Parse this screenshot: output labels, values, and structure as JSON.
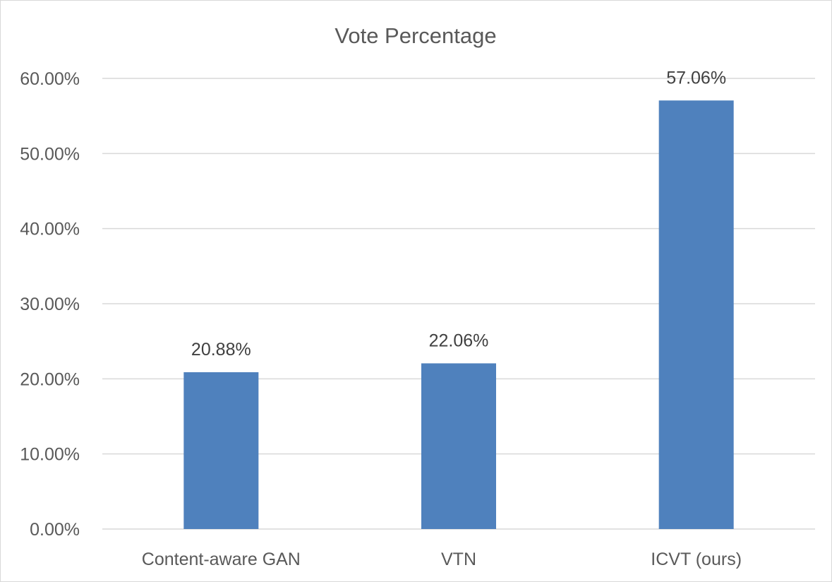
{
  "chart_data": {
    "type": "bar",
    "title": "Vote Percentage",
    "categories": [
      "Content-aware GAN",
      "VTN",
      "ICVT (ours)"
    ],
    "values": [
      20.88,
      22.06,
      57.06
    ],
    "data_labels": [
      "20.88%",
      "22.06%",
      "57.06%"
    ],
    "ylim": [
      0,
      60
    ],
    "yticks": [
      0,
      10,
      20,
      30,
      40,
      50,
      60
    ],
    "ytick_labels": [
      "0.00%",
      "10.00%",
      "20.00%",
      "30.00%",
      "40.00%",
      "50.00%",
      "60.00%"
    ],
    "grid": true,
    "legend": "none",
    "bar_color": "#4f81bd"
  }
}
